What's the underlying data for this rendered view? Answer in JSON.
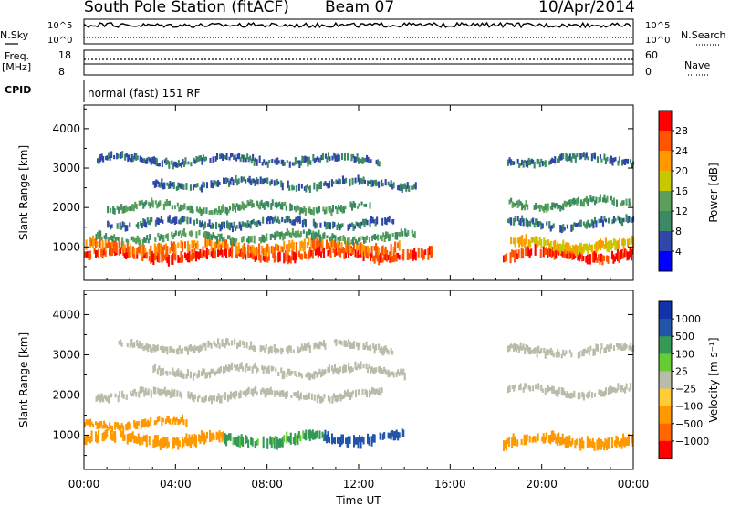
{
  "header": {
    "station": "South Pole Station (fitACF)",
    "beam": "Beam 07",
    "date": "10/Apr/2014"
  },
  "status_panel": {
    "nsky_label": "N.Sky",
    "nsky_ticks": [
      "10^5",
      "10^0"
    ],
    "nsearch_label": "N.Search",
    "nsearch_ticks": [
      "10^5",
      "10^0"
    ],
    "freq_label_top": "Freq.",
    "freq_label_bottom": "[MHz]",
    "freq_ticks": [
      "18",
      "8"
    ],
    "nave_label": "Nave",
    "nave_ticks": [
      "60",
      "0"
    ],
    "cpid_label": "CPID",
    "cpid_text": "normal (fast) 151 RF"
  },
  "colors": {
    "power_scale": [
      "#0000ff",
      "#2f47a8",
      "#3a8a63",
      "#5aa05a",
      "#c8c800",
      "#ff9900",
      "#ff5500",
      "#ff0000"
    ],
    "velocity_scale": [
      "#ff0000",
      "#ff6600",
      "#ff9900",
      "#ffcc33",
      "#bbbbaa",
      "#66cc33",
      "#339955",
      "#2255aa",
      "#1133aa"
    ]
  },
  "chart_data": [
    {
      "type": "heatmap",
      "title": "",
      "xlabel": "Time UT",
      "ylabel": "Slant Range [km]",
      "x_ticks": [
        "00:00",
        "04:00",
        "08:00",
        "12:00",
        "16:00",
        "20:00",
        "00:00"
      ],
      "y_ticks": [
        "1000",
        "2000",
        "3000",
        "4000"
      ],
      "ylim": [
        150,
        4600
      ],
      "grid": false,
      "colorbar_label": "Power [dB]",
      "colorbar_ticks": [
        "4",
        "8",
        "12",
        "16",
        "20",
        "24",
        "28"
      ],
      "colorbar_range": [
        0,
        32
      ],
      "bands": [
        {
          "range_km": 800,
          "t_start": 0.0,
          "t_end": 15.2,
          "db": 28
        },
        {
          "range_km": 1000,
          "t_start": 0.0,
          "t_end": 13.8,
          "db": 24
        },
        {
          "range_km": 1250,
          "t_start": 0.5,
          "t_end": 14.5,
          "db": 12
        },
        {
          "range_km": 1600,
          "t_start": 1.0,
          "t_end": 13.5,
          "db": 8
        },
        {
          "range_km": 2000,
          "t_start": 1.0,
          "t_end": 12.5,
          "db": 12
        },
        {
          "range_km": 2600,
          "t_start": 3.0,
          "t_end": 14.5,
          "db": 8
        },
        {
          "range_km": 3200,
          "t_start": 0.5,
          "t_end": 13.0,
          "db": 8
        },
        {
          "range_km": 800,
          "t_start": 18.3,
          "t_end": 24.0,
          "db": 28
        },
        {
          "range_km": 1050,
          "t_start": 18.5,
          "t_end": 24.0,
          "db": 20
        },
        {
          "range_km": 1600,
          "t_start": 18.5,
          "t_end": 24.0,
          "db": 8
        },
        {
          "range_km": 2100,
          "t_start": 18.5,
          "t_end": 24.0,
          "db": 12
        },
        {
          "range_km": 3200,
          "t_start": 18.5,
          "t_end": 24.0,
          "db": 8
        }
      ]
    },
    {
      "type": "heatmap",
      "title": "",
      "xlabel": "Time UT",
      "ylabel": "Slant Range [km]",
      "x_ticks": [
        "00:00",
        "04:00",
        "08:00",
        "12:00",
        "16:00",
        "20:00",
        "00:00"
      ],
      "y_ticks": [
        "1000",
        "2000",
        "3000",
        "4000"
      ],
      "ylim": [
        150,
        4600
      ],
      "grid": false,
      "colorbar_label": "Velocity [m s⁻¹]",
      "colorbar_ticks": [
        "1000",
        "500",
        "100",
        "25",
        "−25",
        "−100",
        "−500",
        "−1000"
      ],
      "bands": [
        {
          "range_km": 900,
          "t_start": 0.0,
          "t_end": 6.0,
          "vel": -300
        },
        {
          "range_km": 900,
          "t_start": 6.0,
          "t_end": 10.5,
          "vel": 200
        },
        {
          "range_km": 950,
          "t_start": 10.5,
          "t_end": 14.0,
          "vel": 800
        },
        {
          "range_km": 1300,
          "t_start": 0.0,
          "t_end": 4.5,
          "vel": -300
        },
        {
          "range_km": 2000,
          "t_start": 0.5,
          "t_end": 13.0,
          "vel": 0
        },
        {
          "range_km": 2600,
          "t_start": 3.0,
          "t_end": 14.0,
          "vel": 0
        },
        {
          "range_km": 3200,
          "t_start": 1.5,
          "t_end": 13.5,
          "vel": 0
        },
        {
          "range_km": 850,
          "t_start": 18.3,
          "t_end": 24.0,
          "vel": -300
        },
        {
          "range_km": 2100,
          "t_start": 18.5,
          "t_end": 24.0,
          "vel": 0
        },
        {
          "range_km": 3100,
          "t_start": 18.5,
          "t_end": 24.0,
          "vel": 0
        }
      ]
    }
  ]
}
